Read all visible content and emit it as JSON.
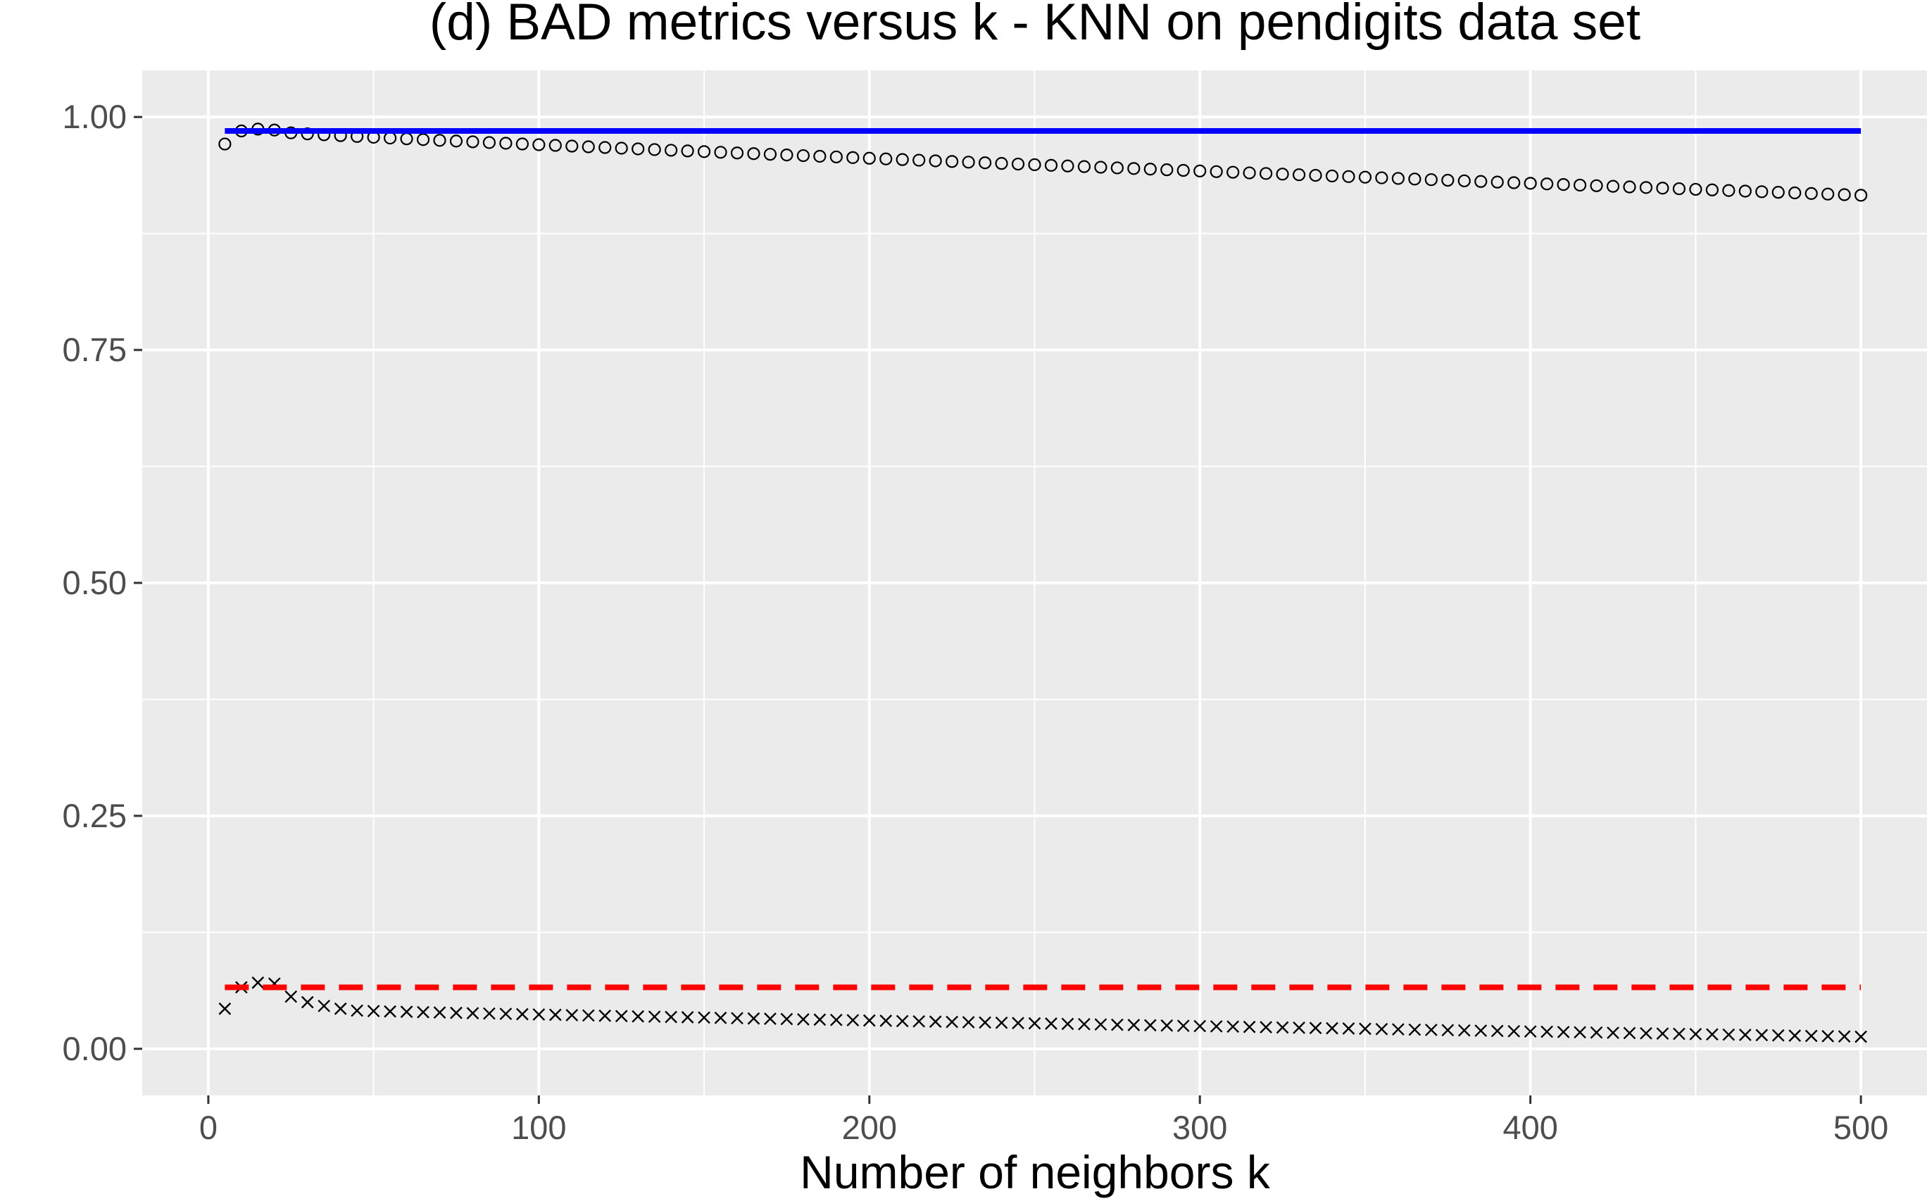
{
  "chart_data": {
    "type": "scatter",
    "title": "(d) BAD metrics versus k - KNN on pendigits data set",
    "xlabel": "Number of neighbors k",
    "ylabel": "",
    "xlim": [
      -20,
      520
    ],
    "ylim": [
      -0.05,
      1.05
    ],
    "x_ticks": [
      0,
      100,
      200,
      300,
      400,
      500
    ],
    "x_tick_labels": [
      "0",
      "100",
      "200",
      "300",
      "400",
      "500"
    ],
    "y_ticks": [
      0,
      0.25,
      0.5,
      0.75,
      1.0
    ],
    "y_tick_labels": [
      "0.00",
      "0.25",
      "0.50",
      "0.75",
      "1.00"
    ],
    "grid": true,
    "legend": "none",
    "background_color": "#ebebeb",
    "series": [
      {
        "marker": "circle",
        "color": "#000000",
        "x_start": 5,
        "x_step": 5,
        "x_end": 500,
        "head_values": [
          0.971,
          0.985,
          0.987,
          0.986
        ],
        "tail_start_value": 0.983,
        "tail_end_value": 0.916
      },
      {
        "marker": "cross",
        "color": "#000000",
        "x_start": 5,
        "x_step": 5,
        "x_end": 500,
        "head_values": [
          0.043,
          0.066,
          0.071,
          0.07,
          0.056,
          0.05,
          0.046,
          0.043
        ],
        "tail_start_value": 0.041,
        "tail_end_value": 0.013
      },
      {
        "line": "solid",
        "color": "#0000ff",
        "x": [
          5,
          500
        ],
        "y": [
          0.985,
          0.985
        ]
      },
      {
        "line": "dashed",
        "color": "#ff0000",
        "x": [
          5,
          500
        ],
        "y": [
          0.066,
          0.066
        ]
      }
    ]
  }
}
